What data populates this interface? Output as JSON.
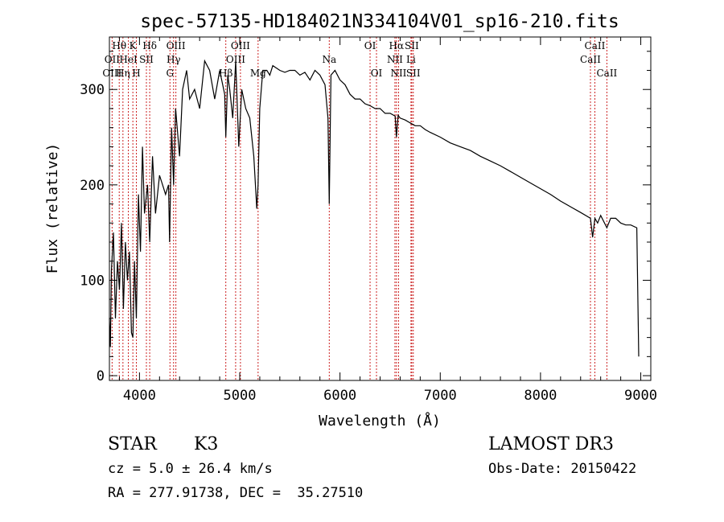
{
  "chart_data": {
    "type": "line",
    "title": "spec-57135-HD184021N334104V01_sp16-210.fits",
    "xlabel": "Wavelength (Å)",
    "ylabel": "Flux (relative)",
    "xlim": [
      3700,
      9100
    ],
    "ylim": [
      -5,
      355
    ],
    "x_ticks": [
      4000,
      5000,
      6000,
      7000,
      8000,
      9000
    ],
    "y_ticks": [
      0,
      100,
      200,
      300
    ],
    "grid": false,
    "series": [
      {
        "x": [
          3700,
          3710,
          3720,
          3740,
          3760,
          3780,
          3800,
          3820,
          3840,
          3860,
          3880,
          3900,
          3920,
          3934,
          3950,
          3969,
          3990,
          4010,
          4030,
          4050,
          4080,
          4102,
          4130,
          4160,
          4200,
          4230,
          4260,
          4290,
          4300,
          4320,
          4340,
          4360,
          4400,
          4430,
          4470,
          4500,
          4550,
          4600,
          4650,
          4700,
          4750,
          4800,
          4850,
          4861,
          4880,
          4900,
          4930,
          4960,
          4990,
          5020,
          5060,
          5100,
          5140,
          5170,
          5183,
          5200,
          5230,
          5270,
          5300,
          5330,
          5400,
          5450,
          5500,
          5550,
          5600,
          5650,
          5700,
          5750,
          5800,
          5850,
          5880,
          5893,
          5910,
          5950,
          6000,
          6050,
          6100,
          6150,
          6200,
          6250,
          6300,
          6350,
          6400,
          6450,
          6500,
          6550,
          6563,
          6580,
          6600,
          6650,
          6700,
          6750,
          6800,
          6850,
          6900,
          7000,
          7100,
          7200,
          7300,
          7400,
          7500,
          7600,
          7700,
          7800,
          7900,
          8000,
          8100,
          8200,
          8300,
          8400,
          8498,
          8520,
          8542,
          8570,
          8600,
          8662,
          8700,
          8750,
          8800,
          8850,
          8900,
          8960,
          8980
        ],
        "y": [
          60,
          30,
          110,
          150,
          60,
          120,
          90,
          160,
          70,
          140,
          100,
          130,
          45,
          40,
          120,
          60,
          190,
          130,
          240,
          170,
          200,
          140,
          230,
          170,
          210,
          200,
          190,
          200,
          140,
          260,
          200,
          280,
          230,
          300,
          320,
          290,
          300,
          280,
          330,
          320,
          290,
          320,
          295,
          250,
          315,
          300,
          270,
          330,
          240,
          300,
          280,
          270,
          230,
          175,
          200,
          280,
          320,
          320,
          315,
          325,
          320,
          318,
          320,
          320,
          315,
          318,
          310,
          320,
          315,
          305,
          270,
          180,
          315,
          320,
          310,
          305,
          295,
          290,
          290,
          285,
          283,
          280,
          280,
          275,
          275,
          272,
          250,
          273,
          270,
          268,
          265,
          262,
          262,
          258,
          255,
          250,
          244,
          240,
          236,
          230,
          225,
          220,
          214,
          208,
          202,
          196,
          190,
          183,
          177,
          171,
          165,
          145,
          165,
          160,
          168,
          155,
          165,
          165,
          160,
          158,
          158,
          155,
          20
        ]
      }
    ],
    "line_identifications": [
      {
        "label": "Hθ",
        "wavelength": 3798,
        "row": 0
      },
      {
        "label": "OII",
        "wavelength": 3727,
        "row": 1
      },
      {
        "label": "OIII",
        "wavelength": 3727,
        "row": 2
      },
      {
        "label": "K",
        "wavelength": 3934,
        "row": 0
      },
      {
        "label": "HeI",
        "wavelength": 3889,
        "row": 1
      },
      {
        "label": "Hη",
        "wavelength": 3835,
        "row": 2
      },
      {
        "label": "SII",
        "wavelength": 4069,
        "row": 1
      },
      {
        "label": "H",
        "wavelength": 3969,
        "row": 2
      },
      {
        "label": "Hδ",
        "wavelength": 4102,
        "row": 0
      },
      {
        "label": "OIII",
        "wavelength": 4363,
        "row": 0
      },
      {
        "label": "Hγ",
        "wavelength": 4340,
        "row": 1
      },
      {
        "label": "G",
        "wavelength": 4304,
        "row": 2
      },
      {
        "label": "OIII",
        "wavelength": 5007,
        "row": 0
      },
      {
        "label": "OIII",
        "wavelength": 4959,
        "row": 1
      },
      {
        "label": "Hβ",
        "wavelength": 4861,
        "row": 2
      },
      {
        "label": "Mg",
        "wavelength": 5183,
        "row": 2
      },
      {
        "label": "Na",
        "wavelength": 5893,
        "row": 1
      },
      {
        "label": "OI",
        "wavelength": 6300,
        "row": 0
      },
      {
        "label": "OI",
        "wavelength": 6364,
        "row": 2
      },
      {
        "label": "Hα",
        "wavelength": 6563,
        "row": 0
      },
      {
        "label": "SII",
        "wavelength": 6716,
        "row": 0
      },
      {
        "label": "NII",
        "wavelength": 6548,
        "row": 1
      },
      {
        "label": "Li",
        "wavelength": 6708,
        "row": 1
      },
      {
        "label": "NII",
        "wavelength": 6584,
        "row": 2
      },
      {
        "label": "SII",
        "wavelength": 6731,
        "row": 2
      },
      {
        "label": "CaII",
        "wavelength": 8542,
        "row": 0
      },
      {
        "label": "CaII",
        "wavelength": 8498,
        "row": 1
      },
      {
        "label": "CaII",
        "wavelength": 8662,
        "row": 2
      }
    ],
    "line_color": "#cc2222"
  },
  "footer": {
    "object_type": "STAR",
    "subclass": "K3",
    "survey": "LAMOST DR3",
    "redshift": "cz = 5.0 ± 26.4 km/s",
    "obs_date": "Obs-Date: 20150422",
    "coordinates": "RA = 277.91738, DEC =  35.27510"
  }
}
